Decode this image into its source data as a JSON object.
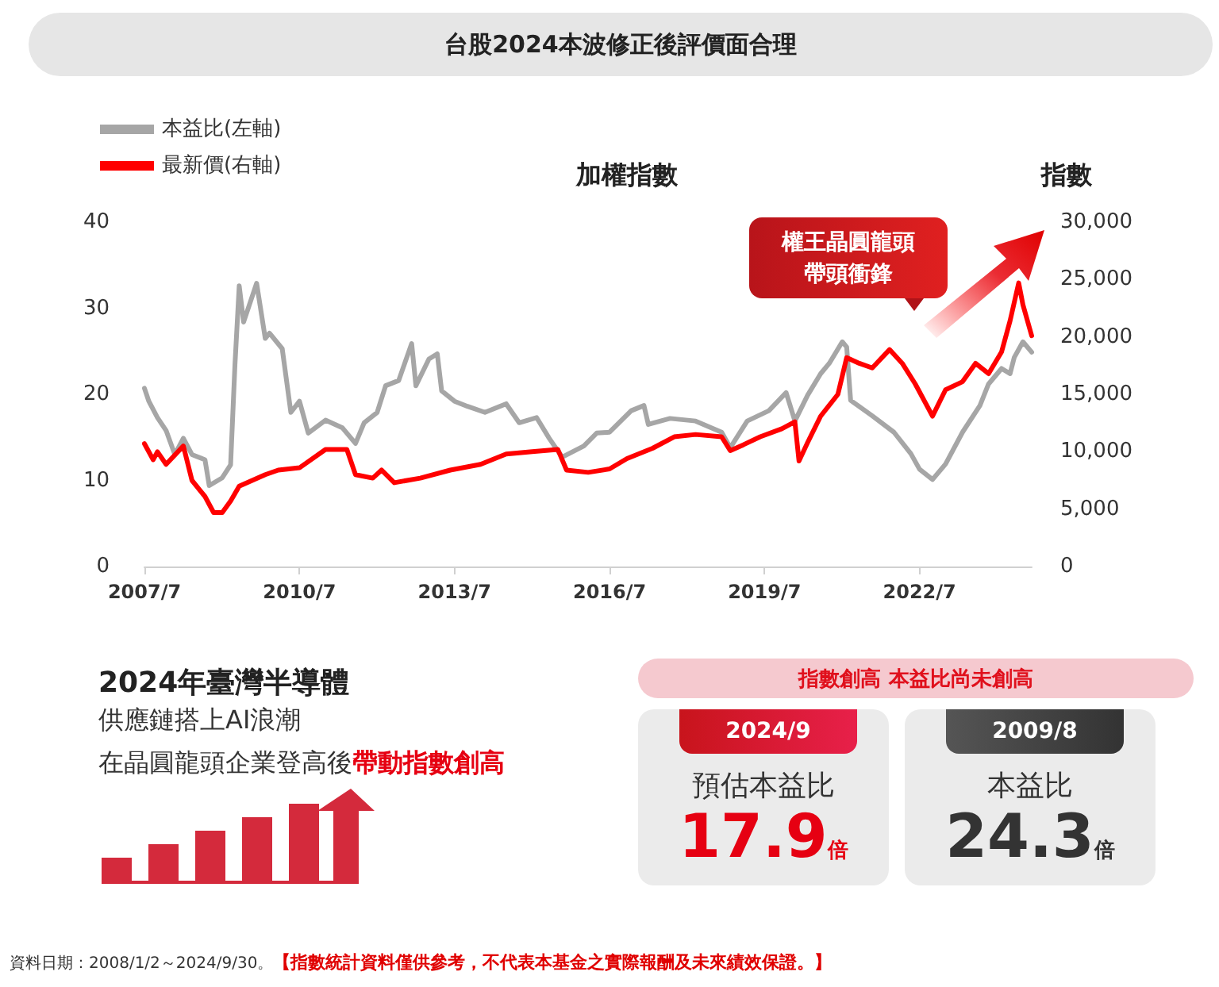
{
  "chart_data": {
    "type": "line",
    "title": "台股2024本波修正後評價面合理",
    "subtitle": "加權指數",
    "y2label": "指數",
    "series": [
      {
        "name": "本益比(左軸)",
        "color": "#a6a6a6",
        "axis": "y",
        "x": [
          "2007-07",
          "2007-08",
          "2007-10",
          "2007-12",
          "2008-02",
          "2008-04",
          "2008-06",
          "2008-09",
          "2008-10",
          "2009-01",
          "2009-03",
          "2009-04",
          "2009-05",
          "2009-06",
          "2009-09",
          "2009-11",
          "2009-12",
          "2010-03",
          "2010-05",
          "2010-07",
          "2010-09",
          "2011-01",
          "2011-05",
          "2011-08",
          "2011-10",
          "2012-01",
          "2012-03",
          "2012-06",
          "2012-09",
          "2012-10",
          "2013-01",
          "2013-03",
          "2013-04",
          "2013-07",
          "2013-10",
          "2014-02",
          "2014-07",
          "2014-10",
          "2015-02",
          "2015-05",
          "2015-08",
          "2016-01",
          "2016-04",
          "2016-07",
          "2016-12",
          "2017-03",
          "2017-04",
          "2017-09",
          "2018-03",
          "2018-09",
          "2018-11",
          "2019-03",
          "2019-08",
          "2019-12",
          "2020-02",
          "2020-05",
          "2020-08",
          "2020-10",
          "2021-01",
          "2021-02",
          "2021-03",
          "2021-08",
          "2022-01",
          "2022-05",
          "2022-07",
          "2022-10",
          "2023-01",
          "2023-05",
          "2023-09",
          "2023-11",
          "2024-02",
          "2024-04",
          "2024-05",
          "2024-07",
          "2024-09"
        ],
        "values": [
          20.7,
          19.2,
          17.3,
          15.8,
          13.0,
          14.9,
          13.0,
          12.4,
          9.4,
          10.3,
          11.8,
          23.5,
          32.6,
          28.4,
          32.9,
          26.5,
          27.1,
          25.3,
          17.9,
          19.2,
          15.5,
          17.0,
          16.1,
          14.3,
          16.7,
          17.9,
          21.0,
          21.6,
          25.9,
          21.0,
          24.1,
          24.7,
          20.4,
          19.2,
          18.6,
          17.9,
          18.9,
          16.7,
          17.3,
          14.9,
          12.7,
          14.0,
          15.5,
          15.6,
          18.1,
          18.7,
          16.5,
          17.2,
          16.9,
          15.6,
          13.8,
          16.9,
          18.1,
          20.2,
          16.9,
          19.9,
          22.4,
          23.6,
          26.1,
          25.5,
          19.3,
          17.5,
          15.6,
          13.1,
          11.3,
          10.1,
          11.9,
          15.6,
          18.7,
          21.2,
          23.0,
          22.4,
          24.3,
          26.1,
          24.9
        ]
      },
      {
        "name": "最新價(右軸)",
        "color": "#ff0000",
        "axis": "y2",
        "x": [
          "2007-07",
          "2007-09",
          "2007-10",
          "2007-12",
          "2008-04",
          "2008-06",
          "2008-09",
          "2008-11",
          "2009-01",
          "2009-03",
          "2009-05",
          "2009-11",
          "2010-02",
          "2010-07",
          "2011-01",
          "2011-06",
          "2011-08",
          "2011-12",
          "2012-02",
          "2012-05",
          "2012-11",
          "2013-06",
          "2014-01",
          "2014-07",
          "2015-01",
          "2015-07",
          "2015-09",
          "2016-02",
          "2016-07",
          "2016-11",
          "2017-05",
          "2017-10",
          "2018-03",
          "2018-09",
          "2018-11",
          "2019-02",
          "2019-06",
          "2019-11",
          "2020-02",
          "2020-03",
          "2020-05",
          "2020-08",
          "2020-12",
          "2021-02",
          "2021-05",
          "2021-08",
          "2021-12",
          "2022-03",
          "2022-06",
          "2022-10",
          "2023-01",
          "2023-05",
          "2023-08",
          "2023-11",
          "2024-02",
          "2024-04",
          "2024-06",
          "2024-07",
          "2024-09"
        ],
        "values": [
          10700,
          9300,
          10000,
          8900,
          10500,
          7500,
          6100,
          4700,
          4700,
          5700,
          7000,
          8000,
          8400,
          8600,
          10200,
          10200,
          8000,
          7700,
          8400,
          7300,
          7700,
          8400,
          8900,
          9800,
          10000,
          10200,
          8400,
          8200,
          8500,
          9400,
          10300,
          11300,
          11500,
          11300,
          10100,
          10600,
          11300,
          12000,
          12600,
          9200,
          10800,
          13100,
          15000,
          18200,
          17700,
          17300,
          18900,
          17700,
          15900,
          13100,
          15400,
          16100,
          17700,
          16800,
          18700,
          21400,
          24700,
          22800,
          20100
        ]
      }
    ],
    "xlim": [
      "2007-07",
      "2024-09"
    ],
    "xticks": [
      {
        "value": "2007-07",
        "label": "2007/7"
      },
      {
        "value": "2010-07",
        "label": "2010/7"
      },
      {
        "value": "2013-07",
        "label": "2013/7"
      },
      {
        "value": "2016-07",
        "label": "2016/7"
      },
      {
        "value": "2019-07",
        "label": "2019/7"
      },
      {
        "value": "2022-07",
        "label": "2022/7"
      }
    ],
    "ylim": [
      0,
      40
    ],
    "yticks": [
      0,
      10,
      20,
      30,
      40
    ],
    "y2lim": [
      0,
      30000
    ],
    "y2ticks": [
      0,
      {
        "value": 5000,
        "label": "5,000"
      },
      {
        "value": 10000,
        "label": "10,000"
      },
      {
        "value": 15000,
        "label": "15,000"
      },
      {
        "value": 20000,
        "label": "20,000"
      },
      {
        "value": 25000,
        "label": "25,000"
      },
      {
        "value": 30000,
        "label": "30,000"
      }
    ],
    "grid": false,
    "legend": "top left",
    "marker": "none",
    "line_style": "solid",
    "annotations": [
      "權王晶圓龍頭",
      "帶頭衝鋒",
      "2024年臺灣半導體",
      "供應鏈搭上AI浪潮",
      "在晶圓龍頭企業登高後",
      "帶動指數創高",
      "指數創高 本益比尚未創高",
      "2024/9",
      "預估本益比",
      "17.9",
      "倍",
      "2009/8",
      "本益比",
      "24.3",
      "倍",
      "資料日期：2008/1/2～2024/9/30。",
      "【指數統計資料僅供參考，不代表本基金之實際報酬及未來績效保證。】"
    ]
  }
}
